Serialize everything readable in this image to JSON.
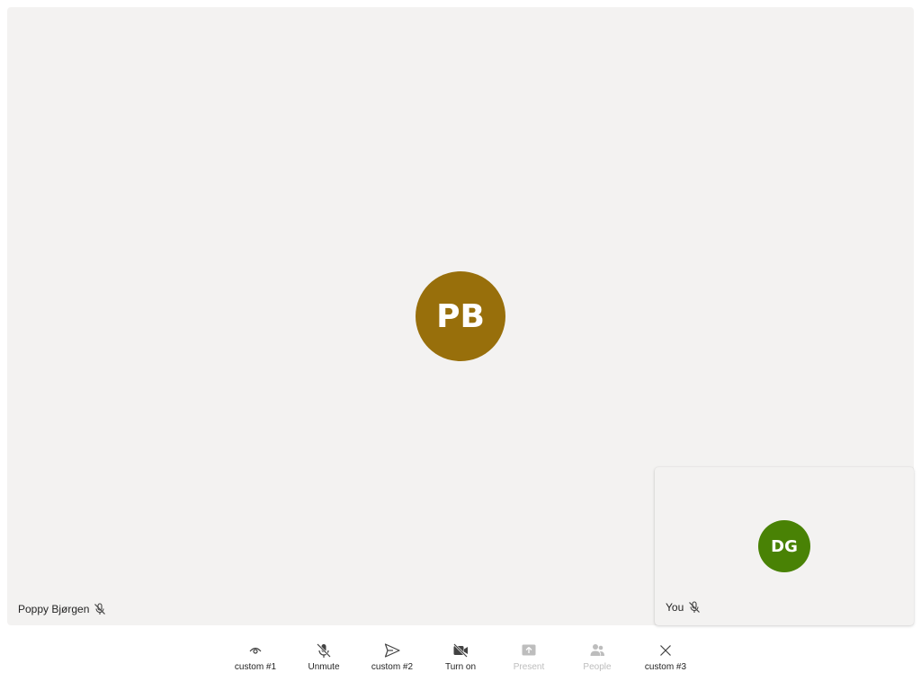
{
  "colors": {
    "stage_bg": "#f3f2f1",
    "main_avatar_bg": "#986f0b",
    "self_avatar_bg": "#498205",
    "icon": "#424242",
    "disabled": "#bdbdbd"
  },
  "main_participant": {
    "initials": "PB",
    "name": "Poppy Bjørgen",
    "muted_icon": "mic-off-icon"
  },
  "self_participant": {
    "initials": "DG",
    "name": "You",
    "muted_icon": "mic-off-icon"
  },
  "controls": [
    {
      "label": "custom #1",
      "icon": "eye-icon",
      "enabled": true
    },
    {
      "label": "Unmute",
      "icon": "mic-off-icon",
      "enabled": true
    },
    {
      "label": "custom #2",
      "icon": "send-icon",
      "enabled": true
    },
    {
      "label": "Turn on",
      "icon": "video-off-icon",
      "enabled": true
    },
    {
      "label": "Present",
      "icon": "share-screen-icon",
      "enabled": false
    },
    {
      "label": "People",
      "icon": "people-icon",
      "enabled": false
    },
    {
      "label": "custom #3",
      "icon": "close-icon",
      "enabled": true
    }
  ]
}
